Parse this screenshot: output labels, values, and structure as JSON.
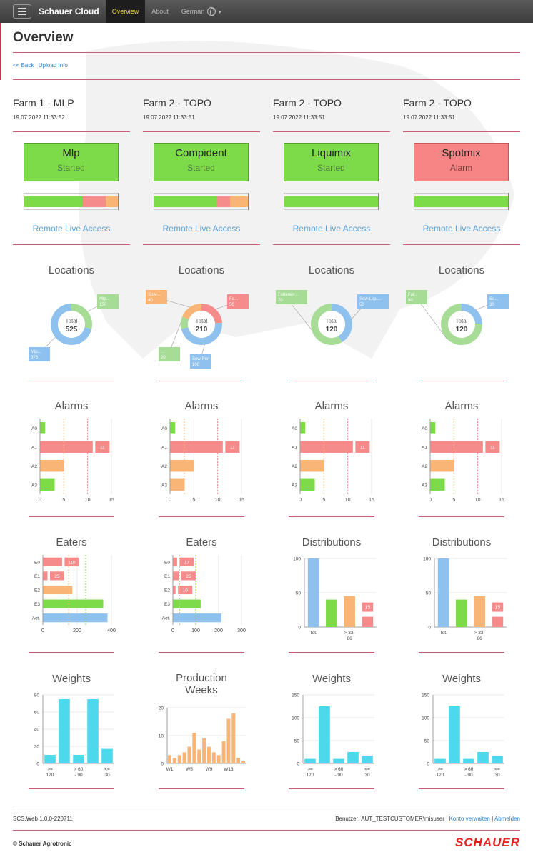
{
  "nav": {
    "brand": "Schauer Cloud",
    "items": [
      "Overview",
      "About",
      "German"
    ]
  },
  "page": {
    "title": "Overview",
    "back_link": "<< Back",
    "separator": "|",
    "upload_link": "Upload Info"
  },
  "colors": {
    "green": "#7ddb4a",
    "red": "#f68b8b",
    "orange": "#f8b576",
    "blue": "#8ec1ee",
    "light_green": "#a6dc96",
    "cyan": "#4dd8ec",
    "alarm_box": "#f78585",
    "accent_line": "#c8607a"
  },
  "farms": [
    {
      "name": "Farm 1 - MLP",
      "timestamp": "19.07.2022 11:33:52",
      "status": {
        "name": "Mlp",
        "state": "Started",
        "color": "#7ddb4a"
      },
      "status_bar": [
        {
          "value": 62,
          "color": "#7ddb4a"
        },
        {
          "value": 25,
          "color": "#f68b8b"
        },
        {
          "value": 13,
          "color": "#f8b576"
        }
      ],
      "remote": "Remote Live Access",
      "locations": {
        "title": "Locations",
        "total_label": "Total",
        "total": "525",
        "slices": [
          {
            "label": "Mlp...",
            "value": 150,
            "color": "#a6dc96",
            "side": "right"
          },
          {
            "label": "Mlp...",
            "value": 375,
            "color": "#8ec1ee",
            "side": "left"
          }
        ]
      },
      "chart2": {
        "type": "hbar",
        "title": "Alarms",
        "categories": [
          "A0",
          "A1",
          "A2",
          "A3"
        ],
        "values": [
          1,
          11,
          5,
          3
        ],
        "colors": [
          "#7ddb4a",
          "#f68b8b",
          "#f8b576",
          "#7ddb4a"
        ],
        "labels": [
          "",
          "11",
          "",
          ""
        ],
        "xticks": [
          "0",
          "5",
          "10",
          "15"
        ],
        "xmax": 15,
        "refs": [
          5,
          10
        ],
        "ref_colors": [
          "#f8b576",
          "#f68b8b"
        ]
      },
      "chart3": {
        "type": "hbar",
        "title": "Eaters",
        "categories": [
          "E0",
          "E1",
          "E2",
          "E3",
          "Act."
        ],
        "values": [
          110,
          25,
          170,
          350,
          375
        ],
        "colors": [
          "#f68b8b",
          "#f68b8b",
          "#f8b576",
          "#7ddb4a",
          "#8ec1ee"
        ],
        "labels": [
          "110",
          "25",
          "",
          "",
          ""
        ],
        "xticks": [
          "0",
          "200",
          "400"
        ],
        "xmax": 400,
        "refs": [
          150,
          250
        ],
        "ref_colors": [
          "#f8b576",
          "#7ddb4a"
        ]
      },
      "chart4": {
        "type": "vbar",
        "title": "Weights",
        "values": [
          10,
          75,
          10,
          75,
          17
        ],
        "color": "#4dd8ec",
        "yticks": [
          "0",
          "20",
          "40",
          "60",
          "80"
        ],
        "ymax": 80,
        "xlabels": [
          ">=\n120",
          "> 60\n- 90",
          "<=\n30"
        ]
      }
    },
    {
      "name": "Farm 2 - TOPO",
      "timestamp": "19.07.2022 11:33:51",
      "status": {
        "name": "Compident",
        "state": "Started",
        "color": "#7ddb4a"
      },
      "status_bar": [
        {
          "value": 67,
          "color": "#7ddb4a"
        },
        {
          "value": 14,
          "color": "#f68b8b"
        },
        {
          "value": 19,
          "color": "#f8b576"
        }
      ],
      "remote": "Remote Live Access",
      "locations": {
        "title": "Locations",
        "total_label": "Total",
        "total": "210",
        "slices": [
          {
            "label": "Fa...",
            "value": 50,
            "color": "#f68b8b",
            "side": "right"
          },
          {
            "label": "Sow-Pen",
            "value": 100,
            "color": "#8ec1ee",
            "side": "bottom"
          },
          {
            "label": "...",
            "value": 20,
            "color": "#a6dc96",
            "side": "left"
          },
          {
            "label": "Sow-...",
            "value": 40,
            "color": "#f8b576",
            "side": "topleft"
          }
        ]
      },
      "chart2": {
        "type": "hbar",
        "title": "Alarms",
        "categories": [
          "A0",
          "A1",
          "A2",
          "A3"
        ],
        "values": [
          1,
          11,
          5,
          3
        ],
        "colors": [
          "#7ddb4a",
          "#f68b8b",
          "#f8b576",
          "#f8b576"
        ],
        "labels": [
          "",
          "11",
          "",
          ""
        ],
        "xticks": [
          "0",
          "5",
          "10",
          "15"
        ],
        "xmax": 15,
        "refs": [
          3,
          10
        ],
        "ref_colors": [
          "#f8b576",
          "#f68b8b"
        ]
      },
      "chart3": {
        "type": "hbar",
        "title": "Eaters",
        "categories": [
          "E0",
          "E1",
          "E2",
          "E3",
          "Act."
        ],
        "values": [
          17,
          25,
          10,
          120,
          210
        ],
        "colors": [
          "#f68b8b",
          "#f68b8b",
          "#f68b8b",
          "#7ddb4a",
          "#8ec1ee"
        ],
        "labels": [
          "17",
          "25",
          "10",
          "",
          ""
        ],
        "xticks": [
          "0",
          "100",
          "200",
          "300"
        ],
        "xmax": 300,
        "refs": [
          30,
          100
        ],
        "ref_colors": [
          "#f8b576",
          "#7ddb4a"
        ]
      },
      "chart4": {
        "type": "vbar",
        "title": "Production\nWeeks",
        "values": [
          3,
          2,
          3,
          4,
          6,
          11,
          5,
          9,
          6,
          4,
          3,
          8,
          16,
          18,
          2,
          1
        ],
        "color": "#f8b576",
        "yticks": [
          "0",
          "10",
          "20"
        ],
        "ymax": 20,
        "xlabels": [
          "W1",
          "W5",
          "W9",
          "W13"
        ]
      }
    },
    {
      "name": "Farm 2 - TOPO",
      "timestamp": "19.07.2022 11:33:51",
      "status": {
        "name": "Liquimix",
        "state": "Started",
        "color": "#7ddb4a"
      },
      "status_bar": [
        {
          "value": 100,
          "color": "#7ddb4a"
        }
      ],
      "remote": "Remote Live Access",
      "locations": {
        "title": "Locations",
        "total_label": "Total",
        "total": "120",
        "slices": [
          {
            "label": "Sow-Liqu...",
            "value": 50,
            "color": "#8ec1ee",
            "side": "right"
          },
          {
            "label": "Fattener-...",
            "value": 70,
            "color": "#a6dc96",
            "side": "topleft"
          }
        ]
      },
      "chart2": {
        "type": "hbar",
        "title": "Alarms",
        "categories": [
          "A0",
          "A1",
          "A2",
          "A3"
        ],
        "values": [
          1,
          11,
          5,
          3
        ],
        "colors": [
          "#7ddb4a",
          "#f68b8b",
          "#f8b576",
          "#7ddb4a"
        ],
        "labels": [
          "",
          "11",
          "",
          ""
        ],
        "xticks": [
          "0",
          "5",
          "10",
          "15"
        ],
        "xmax": 15,
        "refs": [
          5,
          10
        ],
        "ref_colors": [
          "#f8b576",
          "#f68b8b"
        ]
      },
      "chart3": {
        "type": "dbar",
        "title": "Distributions",
        "values": [
          100,
          40,
          45,
          15
        ],
        "colors": [
          "#8ec1ee",
          "#7ddb4a",
          "#f8b576",
          "#f68b8b"
        ],
        "labels": [
          "",
          "",
          "",
          "15"
        ],
        "yticks": [
          "0",
          "50",
          "100"
        ],
        "ymax": 100,
        "xlabels": [
          "Tot.",
          "> 33-\n66"
        ]
      },
      "chart4": {
        "type": "vbar",
        "title": "Weights",
        "values": [
          10,
          125,
          10,
          25,
          17
        ],
        "color": "#4dd8ec",
        "yticks": [
          "0",
          "50",
          "100",
          "150"
        ],
        "ymax": 150,
        "xlabels": [
          ">=\n120",
          "> 60\n- 90",
          "<=\n30"
        ]
      }
    },
    {
      "name": "Farm 2 - TOPO",
      "timestamp": "19.07.2022 11:33:51",
      "status": {
        "name": "Spotmix",
        "state": "Alarm",
        "color": "#f78585"
      },
      "status_bar": [
        {
          "value": 100,
          "color": "#7ddb4a"
        }
      ],
      "remote": "Remote Live Access",
      "locations": {
        "title": "Locations",
        "total_label": "Total",
        "total": "120",
        "slices": [
          {
            "label": "So...",
            "value": 30,
            "color": "#8ec1ee",
            "side": "right"
          },
          {
            "label": "Fat...",
            "value": 90,
            "color": "#a6dc96",
            "side": "topleft"
          }
        ]
      },
      "chart2": {
        "type": "hbar",
        "title": "Alarms",
        "categories": [
          "A0",
          "A1",
          "A2",
          "A3"
        ],
        "values": [
          1,
          11,
          5,
          3
        ],
        "colors": [
          "#7ddb4a",
          "#f68b8b",
          "#f8b576",
          "#7ddb4a"
        ],
        "labels": [
          "",
          "11",
          "",
          ""
        ],
        "xticks": [
          "0",
          "5",
          "10",
          "15"
        ],
        "xmax": 15,
        "refs": [
          5,
          10
        ],
        "ref_colors": [
          "#f8b576",
          "#f68b8b"
        ]
      },
      "chart3": {
        "type": "dbar",
        "title": "Distributions",
        "values": [
          100,
          40,
          45,
          15
        ],
        "colors": [
          "#8ec1ee",
          "#7ddb4a",
          "#f8b576",
          "#f68b8b"
        ],
        "labels": [
          "",
          "",
          "",
          "15"
        ],
        "yticks": [
          "0",
          "50",
          "100"
        ],
        "ymax": 100,
        "xlabels": [
          "Tot.",
          "> 33-\n66"
        ]
      },
      "chart4": {
        "type": "vbar",
        "title": "Weights",
        "values": [
          10,
          125,
          10,
          25,
          17
        ],
        "color": "#4dd8ec",
        "yticks": [
          "0",
          "50",
          "100",
          "150"
        ],
        "ymax": 150,
        "xlabels": [
          ">=\n120",
          "> 60\n- 90",
          "<=\n30"
        ]
      }
    }
  ],
  "footer": {
    "version": "SCS.Web 1.0.0-220711",
    "user_text": "Benutzer: AUT_TESTCUSTOMER\\misuser",
    "account_link": "Konto verwalten",
    "logout_link": "Abmelden",
    "copyright": "© Schauer Agrotronic",
    "logo": "SCHAUER"
  }
}
